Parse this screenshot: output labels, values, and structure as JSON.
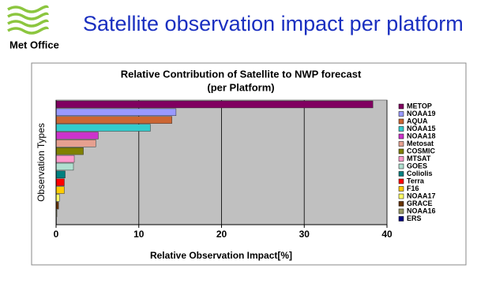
{
  "header": {
    "brand": "Met Office",
    "title": "Satellite observation impact per platform"
  },
  "chart_data": {
    "type": "hbar",
    "title": "Relative Contribution of Satellite to NWP forecast",
    "subtitle": "(per Platform)",
    "x_label": "Relative Observation Impact[%]",
    "y_label": "Observation Types",
    "categories": [
      "METOP",
      "NOAA19",
      "AQUA",
      "NOAA15",
      "NOAA18",
      "Metosat",
      "COSMIC",
      "MTSAT",
      "GOES",
      "Coliolis",
      "Terra",
      "F16",
      "NOAA17",
      "GRACE",
      "NOAA16",
      "ERS"
    ],
    "values": [
      38.3,
      14.5,
      14.0,
      11.4,
      5.1,
      4.8,
      3.3,
      2.2,
      2.1,
      1.1,
      1.0,
      1.0,
      0.4,
      0.3,
      0.1,
      0.05
    ],
    "colors": [
      "#800060",
      "#9999ff",
      "#cc6633",
      "#33cccc",
      "#cc33cc",
      "#e6a090",
      "#808000",
      "#ff99cc",
      "#b0e0d0",
      "#008080",
      "#ff0000",
      "#ffcc00",
      "#ffff66",
      "#663300",
      "#999966",
      "#000080"
    ],
    "xlim": [
      0,
      40
    ],
    "xticks": [
      0,
      10,
      20,
      30,
      40
    ],
    "grid": true,
    "legend": "right"
  }
}
